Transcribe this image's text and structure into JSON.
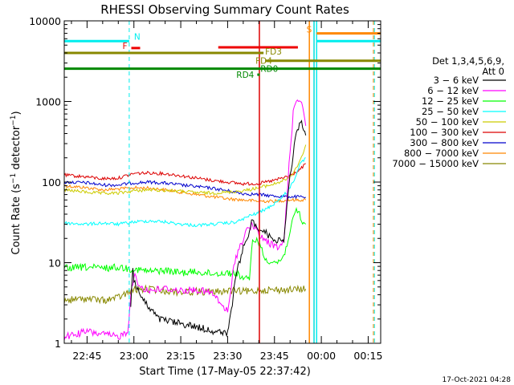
{
  "chart_data": {
    "type": "line",
    "title": "RHESSI Observing Summary Count Rates",
    "xlabel": "Start Time (17-May-05 22:37:42)",
    "ylabel": "Count Rate (s⁻¹ detector⁻¹)",
    "ylabel_main": "Count Rate (s",
    "ylabel_sup1": "−1",
    "ylabel_mid": " detector",
    "ylabel_sup2": "−1",
    "ylabel_end": ")",
    "yscale": "log",
    "ylim": [
      1,
      10000
    ],
    "xlim": [
      "22:37:42",
      "00:19:00"
    ],
    "x_ticks": [
      "22:45",
      "23:00",
      "23:15",
      "23:30",
      "23:45",
      "00:00",
      "00:15"
    ],
    "y_ticks": [
      "1",
      "10",
      "100",
      "1000",
      "10000"
    ],
    "legend_header": "Det 1,3,4,5,6,9,",
    "legend_header2": "Att 0",
    "legend_position": "right",
    "timestamp": "17-Oct-2021 04:28",
    "colors": {
      "3-6": "#000000",
      "6-12": "#ff00ff",
      "12-25": "#00ff00",
      "25-50": "#00ffff",
      "50-100": "#cccc00",
      "100-300": "#dd0000",
      "300-800": "#0000cc",
      "800-7000": "#ff8800",
      "7000-15000": "#888800",
      "night": "#00dddd",
      "saa": "#ff8800"
    },
    "series": [
      {
        "name": "3 − 6 keV",
        "points": [
          [
            "22:59",
            3
          ],
          [
            "22:59:40",
            9
          ],
          [
            "23:00",
            6
          ],
          [
            "23:01",
            5
          ],
          [
            "23:02",
            4
          ],
          [
            "23:04",
            3
          ],
          [
            "23:08",
            2
          ],
          [
            "23:20",
            1.6
          ],
          [
            "23:30",
            1.3
          ],
          [
            "23:33",
            8
          ],
          [
            "23:35",
            15
          ],
          [
            "23:37",
            25
          ],
          [
            "23:38",
            35
          ],
          [
            "23:39",
            28
          ],
          [
            "23:41",
            26
          ],
          [
            "23:43",
            22
          ],
          [
            "23:45",
            20
          ],
          [
            "23:47",
            18
          ],
          [
            "23:48",
            20
          ],
          [
            "23:50",
            120
          ],
          [
            "23:52",
            400
          ],
          [
            "23:53",
            540
          ],
          [
            "23:54",
            520
          ],
          [
            "23:55",
            380
          ]
        ]
      },
      {
        "name": "6 − 12 keV",
        "points": [
          [
            "22:37:42",
            1.2
          ],
          [
            "22:45",
            1.4
          ],
          [
            "22:55",
            1.2
          ],
          [
            "22:58",
            1.4
          ],
          [
            "22:59",
            4
          ],
          [
            "23:00",
            7
          ],
          [
            "23:02",
            5
          ],
          [
            "23:05",
            4.5
          ],
          [
            "23:10",
            4.8
          ],
          [
            "23:15",
            4.5
          ],
          [
            "23:20",
            4.6
          ],
          [
            "23:25",
            4.2
          ],
          [
            "23:28",
            3
          ],
          [
            "23:30",
            2.5
          ],
          [
            "23:31",
            4
          ],
          [
            "23:32",
            10
          ],
          [
            "23:34",
            16
          ],
          [
            "23:36",
            25
          ],
          [
            "23:38",
            30
          ],
          [
            "23:40",
            22
          ],
          [
            "23:42",
            19
          ],
          [
            "23:44",
            17
          ],
          [
            "23:46",
            15
          ],
          [
            "23:48",
            18
          ],
          [
            "23:50",
            250
          ],
          [
            "23:51",
            700
          ],
          [
            "23:52",
            1050
          ],
          [
            "23:53",
            1100
          ],
          [
            "23:54",
            900
          ],
          [
            "23:55",
            500
          ]
        ]
      },
      {
        "name": "12 − 25 keV",
        "points": [
          [
            "22:37:42",
            8.5
          ],
          [
            "22:45",
            8.8
          ],
          [
            "22:50",
            8.5
          ],
          [
            "22:55",
            8.8
          ],
          [
            "23:00",
            8.3
          ],
          [
            "23:05",
            7.8
          ],
          [
            "23:10",
            8
          ],
          [
            "23:15",
            7.5
          ],
          [
            "23:20",
            7.7
          ],
          [
            "23:25",
            7.3
          ],
          [
            "23:30",
            7.5
          ],
          [
            "23:33",
            7.3
          ],
          [
            "23:35",
            6.5
          ],
          [
            "23:37",
            6
          ],
          [
            "23:38",
            20
          ],
          [
            "23:40",
            18
          ],
          [
            "23:42",
            11
          ],
          [
            "23:44",
            10.5
          ],
          [
            "23:46",
            10
          ],
          [
            "23:48",
            12
          ],
          [
            "23:50",
            25
          ],
          [
            "23:52",
            45
          ],
          [
            "23:53",
            40
          ],
          [
            "23:54",
            30
          ],
          [
            "23:55",
            30
          ]
        ]
      },
      {
        "name": "25 − 50 keV",
        "points": [
          [
            "22:37:42",
            31
          ],
          [
            "22:45",
            30
          ],
          [
            "22:50",
            31
          ],
          [
            "22:55",
            30
          ],
          [
            "23:00",
            32
          ],
          [
            "23:05",
            33
          ],
          [
            "23:10",
            32
          ],
          [
            "23:15",
            30
          ],
          [
            "23:20",
            29
          ],
          [
            "23:25",
            30
          ],
          [
            "23:30",
            31
          ],
          [
            "23:33",
            32
          ],
          [
            "23:35",
            35
          ],
          [
            "23:37",
            38
          ],
          [
            "23:40",
            42
          ],
          [
            "23:43",
            48
          ],
          [
            "23:46",
            58
          ],
          [
            "23:49",
            75
          ],
          [
            "23:51",
            100
          ],
          [
            "23:53",
            160
          ],
          [
            "23:55",
            200
          ]
        ]
      },
      {
        "name": "50 − 100 keV",
        "points": [
          [
            "22:37:42",
            80
          ],
          [
            "22:45",
            75
          ],
          [
            "22:50",
            72
          ],
          [
            "22:55",
            73
          ],
          [
            "23:00",
            78
          ],
          [
            "23:05",
            80
          ],
          [
            "23:10",
            79
          ],
          [
            "23:15",
            77
          ],
          [
            "23:20",
            74
          ],
          [
            "23:25",
            73
          ],
          [
            "23:30",
            75
          ],
          [
            "23:35",
            78
          ],
          [
            "23:40",
            85
          ],
          [
            "23:45",
            95
          ],
          [
            "23:48",
            105
          ],
          [
            "23:50",
            115
          ],
          [
            "23:52",
            150
          ],
          [
            "23:54",
            220
          ],
          [
            "23:55",
            290
          ]
        ]
      },
      {
        "name": "100 − 300 keV",
        "points": [
          [
            "22:37:42",
            122
          ],
          [
            "22:45",
            116
          ],
          [
            "22:50",
            110
          ],
          [
            "22:55",
            112
          ],
          [
            "23:00",
            128
          ],
          [
            "23:05",
            130
          ],
          [
            "23:10",
            127
          ],
          [
            "23:15",
            120
          ],
          [
            "23:20",
            112
          ],
          [
            "23:25",
            105
          ],
          [
            "23:30",
            100
          ],
          [
            "23:35",
            95
          ],
          [
            "23:40",
            96
          ],
          [
            "23:45",
            105
          ],
          [
            "23:50",
            120
          ],
          [
            "23:53",
            140
          ],
          [
            "23:55",
            170
          ]
        ]
      },
      {
        "name": "300 − 800 keV",
        "points": [
          [
            "22:37:42",
            100
          ],
          [
            "22:45",
            98
          ],
          [
            "22:50",
            92
          ],
          [
            "22:55",
            92
          ],
          [
            "23:00",
            98
          ],
          [
            "23:05",
            100
          ],
          [
            "23:10",
            97
          ],
          [
            "23:15",
            92
          ],
          [
            "23:20",
            88
          ],
          [
            "23:25",
            84
          ],
          [
            "23:30",
            78
          ],
          [
            "23:35",
            72
          ],
          [
            "23:40",
            70
          ],
          [
            "23:45",
            67
          ],
          [
            "23:50",
            66
          ],
          [
            "23:55",
            65
          ]
        ]
      },
      {
        "name": "800 − 7000 keV",
        "points": [
          [
            "22:37:42",
            90
          ],
          [
            "22:45",
            85
          ],
          [
            "22:50",
            80
          ],
          [
            "22:55",
            82
          ],
          [
            "23:00",
            85
          ],
          [
            "23:05",
            84
          ],
          [
            "23:10",
            80
          ],
          [
            "23:15",
            75
          ],
          [
            "23:20",
            70
          ],
          [
            "23:25",
            66
          ],
          [
            "23:30",
            62
          ],
          [
            "23:35",
            60
          ],
          [
            "23:40",
            58
          ],
          [
            "23:45",
            58
          ],
          [
            "23:50",
            60
          ],
          [
            "23:55",
            60
          ]
        ]
      },
      {
        "name": "7000 − 15000 keV",
        "points": [
          [
            "22:37:42",
            3.4
          ],
          [
            "22:45",
            3.6
          ],
          [
            "22:50",
            3.4
          ],
          [
            "22:55",
            3.7
          ],
          [
            "23:00",
            4.6
          ],
          [
            "23:05",
            4.7
          ],
          [
            "23:10",
            4.5
          ],
          [
            "23:15",
            4.3
          ],
          [
            "23:20",
            4.4
          ],
          [
            "23:25",
            4.3
          ],
          [
            "23:30",
            4.5
          ],
          [
            "23:35",
            4.4
          ],
          [
            "23:38",
            4.4
          ],
          [
            "23:40",
            4.6
          ],
          [
            "23:45",
            4.6
          ],
          [
            "23:50",
            4.6
          ],
          [
            "23:55",
            4.7
          ]
        ]
      }
    ],
    "flag_bars": [
      {
        "label": "N",
        "color": "#00eeee",
        "y": 5600,
        "start": "22:37:42",
        "end": "22:58:30"
      },
      {
        "label": "F",
        "color": "#ee0000",
        "y": 4600,
        "start": "22:59:10",
        "end": "23:02:00"
      },
      {
        "label": "",
        "color": "#ee0000",
        "y": 4700,
        "start": "23:27:00",
        "end": "23:52:30"
      },
      {
        "label": "FD3",
        "color": "#888800",
        "y": 4000,
        "start": "22:37:42",
        "end": "23:41:30"
      },
      {
        "label": "FD4",
        "color": "#888800",
        "y": 3200,
        "start": "23:42:00",
        "end": "00:19:00"
      },
      {
        "label": "RD0",
        "color": "#008800",
        "y": 2550,
        "start": "22:37:42",
        "end": "00:19:00"
      },
      {
        "label": "RD4",
        "color": "#008800",
        "y": 2150,
        "start": "23:39:30",
        "end": "23:40:00"
      },
      {
        "label": "S",
        "color": "#ff8800",
        "y": 7000,
        "start": "23:58:30",
        "end": "00:19:00"
      },
      {
        "label": "",
        "color": "#00eeee",
        "y": 5600,
        "start": "23:58:30",
        "end": "00:19:00"
      }
    ],
    "markers": [
      {
        "time": "22:58:30",
        "color": "#00eeee",
        "style": "dashed"
      },
      {
        "time": "23:57:40",
        "color": "#00dddd",
        "style": "solid"
      },
      {
        "time": "23:58:30",
        "color": "#00eeee",
        "style": "solid"
      },
      {
        "time": "00:16:40",
        "color": "#ff8800",
        "style": "dashed"
      },
      {
        "time": "00:17:00",
        "color": "#00eeee",
        "style": "dashed"
      },
      {
        "time": "23:56:10",
        "color": "#ff8800",
        "style": "solid"
      },
      {
        "time": "23:40:10",
        "color": "#dd0000",
        "style": "solid"
      }
    ]
  }
}
